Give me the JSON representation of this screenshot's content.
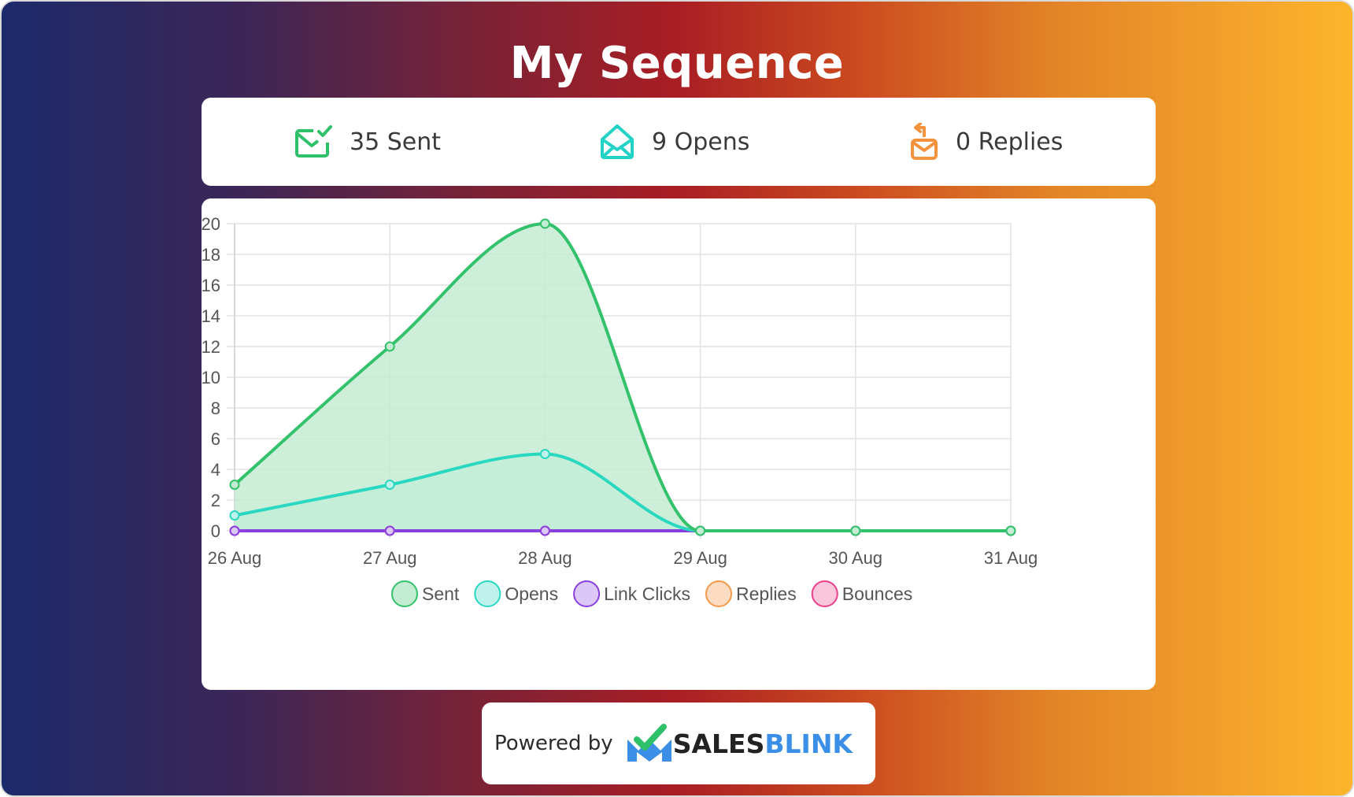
{
  "page": {
    "title": "My Sequence"
  },
  "stats": [
    {
      "label": "35 Sent",
      "icon": "envelope-check-icon",
      "color": "#2fc06a"
    },
    {
      "label": "9 Opens",
      "icon": "envelope-open-icon",
      "color": "#22d3c5"
    },
    {
      "label": "0 Replies",
      "icon": "envelope-reply-icon",
      "color": "#f5923e"
    }
  ],
  "chart_data": {
    "type": "line",
    "categories": [
      "26 Aug",
      "27 Aug",
      "28 Aug",
      "29 Aug",
      "30 Aug",
      "31 Aug"
    ],
    "ylim": [
      0,
      20
    ],
    "yticks": [
      0,
      2,
      4,
      6,
      8,
      10,
      12,
      14,
      16,
      18,
      20
    ],
    "grid": true,
    "filled_area": true,
    "smooth": true,
    "legend_position": "bottom",
    "series": [
      {
        "name": "Sent",
        "values": [
          3,
          12,
          20,
          0,
          0,
          0
        ],
        "color": "#33c26b",
        "fill": "#c4ecd3"
      },
      {
        "name": "Opens",
        "values": [
          1,
          3,
          5,
          0,
          0,
          0
        ],
        "color": "#2ad8c0",
        "fill": "#bff2eb"
      },
      {
        "name": "Link Clicks",
        "values": [
          0,
          0,
          0,
          0,
          0,
          0
        ],
        "color": "#8a3fe0",
        "fill": "#dcc8f6"
      },
      {
        "name": "Replies",
        "values": [
          0,
          0,
          0,
          0,
          0,
          0
        ],
        "color": "#f59a4a",
        "fill": "#fbdcc2"
      },
      {
        "name": "Bounces",
        "values": [
          0,
          0,
          0,
          0,
          0,
          0
        ],
        "color": "#ec3f8a",
        "fill": "#f9c6dc"
      }
    ]
  },
  "footer": {
    "powered_by": "Powered by",
    "brand_part1": "SALES",
    "brand_part2": "BLINK",
    "brand_icon": "salesblink-logo-icon"
  }
}
